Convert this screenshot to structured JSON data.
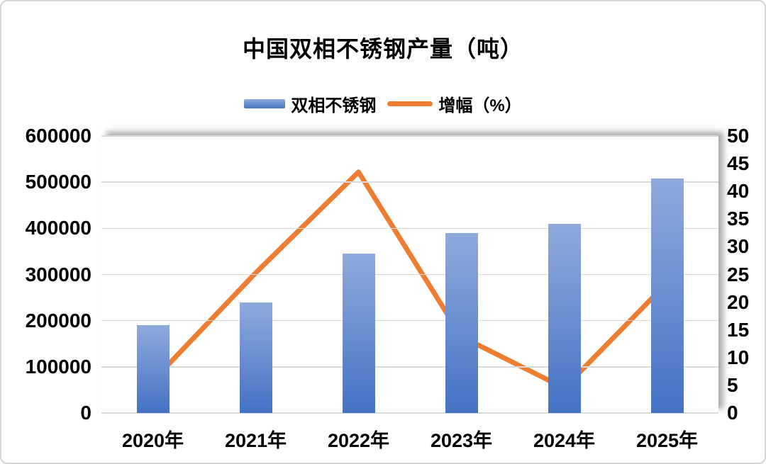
{
  "title": "中国双相不锈钢产量（吨）",
  "colors": {
    "bar_gradient_top": "#8FAADC",
    "bar_gradient_bottom": "#4472C4",
    "line": "#ED7D31",
    "gridline": "#DADADA",
    "text": "#000000",
    "card_border": "#D4D4D4"
  },
  "chart_data": {
    "type": "combo-bar-line",
    "title": "中国双相不锈钢产量（吨）",
    "categories": [
      "2020年",
      "2021年",
      "2022年",
      "2023年",
      "2024年",
      "2025年"
    ],
    "series": [
      {
        "name": "双相不锈钢",
        "type": "bar",
        "axis": "left",
        "values": [
          190000,
          240000,
          345000,
          390000,
          410000,
          508000
        ]
      },
      {
        "name": "增幅（%）",
        "type": "line",
        "axis": "right",
        "values": [
          5.8,
          25.3,
          43.5,
          13.8,
          4.5,
          23.5
        ]
      }
    ],
    "left_axis": {
      "min": 0,
      "max": 600000,
      "step": 100000,
      "tick_labels": [
        "600000",
        "500000",
        "400000",
        "300000",
        "200000",
        "100000",
        "0"
      ]
    },
    "right_axis": {
      "min": 0,
      "max": 50,
      "step": 5,
      "tick_labels": [
        "50",
        "45",
        "40",
        "35",
        "30",
        "25",
        "20",
        "15",
        "10",
        "5",
        "0"
      ]
    },
    "grid": true,
    "legend_position": "top-center"
  }
}
